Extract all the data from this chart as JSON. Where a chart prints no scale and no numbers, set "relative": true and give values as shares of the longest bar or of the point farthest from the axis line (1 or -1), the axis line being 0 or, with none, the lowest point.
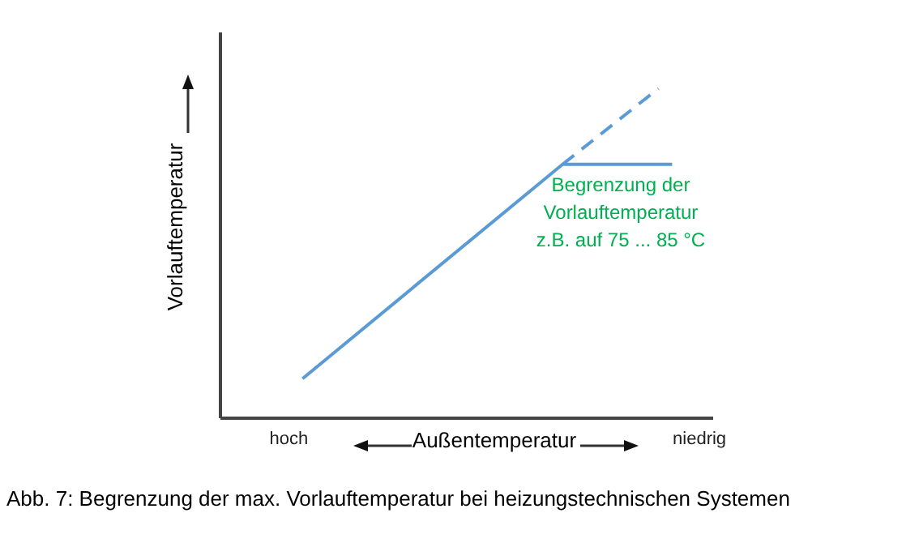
{
  "chart_data": {
    "type": "line",
    "title": "Abb. 7: Begrenzung der max. Vorlauftemperatur bei heizungstechnischen Systemen",
    "xlabel": "Außentemperatur",
    "ylabel": "Vorlauftemperatur",
    "relative": true,
    "categories": [
      null,
      null,
      null,
      null,
      null,
      "hoch",
      null,
      null,
      null,
      null,
      null,
      null,
      null,
      null,
      null,
      null,
      null,
      null,
      null,
      null,
      null,
      null,
      null,
      null,
      null,
      null,
      null,
      null,
      null,
      null,
      null,
      null,
      null,
      null,
      null,
      "niedrig",
      null
    ],
    "series": [
      {
        "color": "#5b9bd5",
        "values": [
          null,
          null,
          null,
          null,
          null,
          null,
          0.12,
          null,
          null,
          null,
          null,
          null,
          null,
          null,
          null,
          null,
          null,
          null,
          null,
          null,
          null,
          null,
          null,
          null,
          null,
          0.77,
          null,
          null,
          null,
          null,
          null,
          null,
          null,
          0.77,
          null,
          null,
          null
        ],
        "line_style": "solid"
      },
      {
        "color": "#5b9bd5",
        "values": [
          null,
          null,
          null,
          null,
          null,
          null,
          null,
          null,
          null,
          null,
          null,
          null,
          null,
          null,
          null,
          null,
          null,
          null,
          null,
          null,
          null,
          null,
          null,
          null,
          null,
          0.77,
          null,
          null,
          null,
          null,
          null,
          null,
          1,
          null,
          null,
          null,
          null
        ],
        "line_style": "dashed"
      }
    ],
    "annotations": [
      "Begrenzung der\nVorlauftemperatur\nz.B. auf 75 ... 85 °C"
    ],
    "marker": "none"
  }
}
